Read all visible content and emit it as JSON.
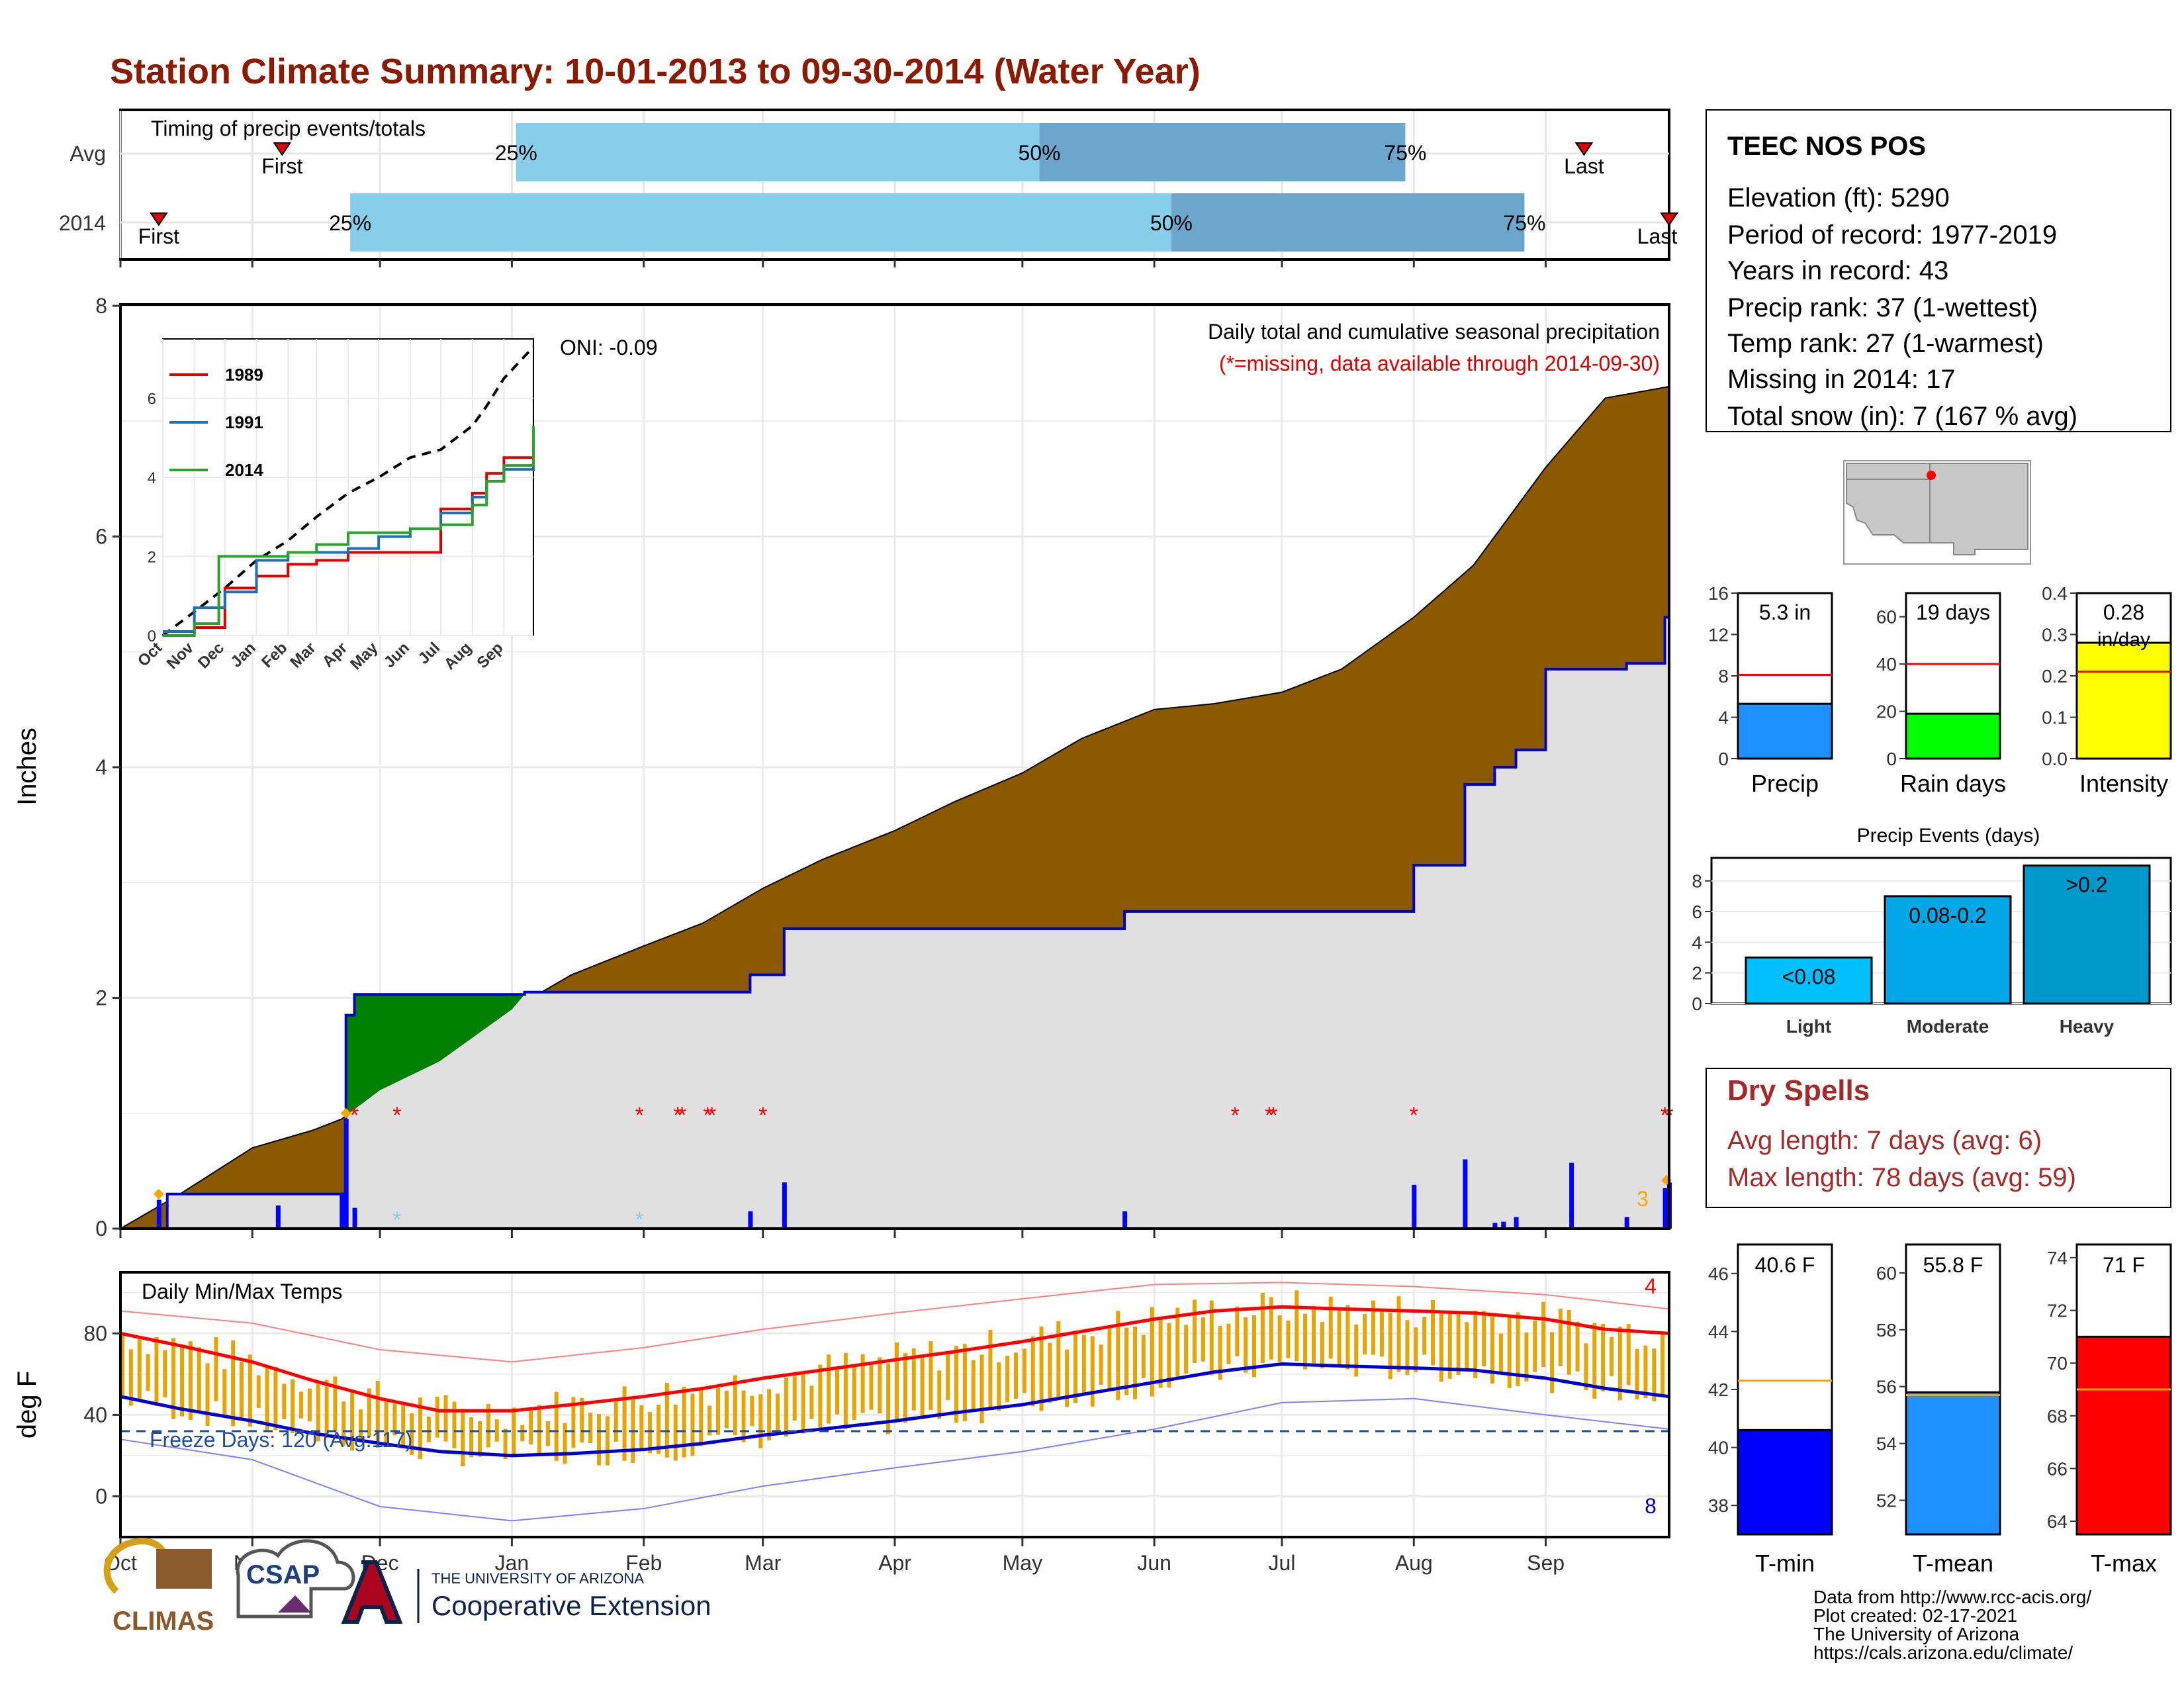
{
  "title": "Station Climate Summary: 10-01-2013 to 09-30-2014 (Water Year)",
  "timing": {
    "title": "Timing of precip events/totals",
    "rows": [
      {
        "label": "Avg",
        "first": "First",
        "last": "Last",
        "p25": "25%",
        "p50": "50%",
        "p75": "75%",
        "first_date": "2013-11-08",
        "p25_date": "2014-01-02",
        "p50_date": "2014-05-05",
        "p75_date": "2014-07-30",
        "last_date": "2014-09-10"
      },
      {
        "label": "2014",
        "first": "First",
        "last": "Last",
        "p25": "25%",
        "p50": "50%",
        "p75": "75%",
        "first_date": "2013-10-10",
        "p25_date": "2013-11-24",
        "p50_date": "2014-06-05",
        "p75_date": "2014-08-27",
        "last_date": "2014-09-30"
      }
    ]
  },
  "precip": {
    "ylabel": "Inches",
    "yticks": [
      "0",
      "2",
      "4",
      "6",
      "8"
    ],
    "note1": "Daily total and cumulative seasonal precipitation",
    "note2": "(*=missing, data available through 2014-09-30)",
    "oni": "ONI: -0.09",
    "count_label": "3",
    "months": [
      "Oct",
      "Nov",
      "Dec",
      "Jan",
      "Feb",
      "Mar",
      "Apr",
      "May",
      "Jun",
      "Jul",
      "Aug",
      "Sep"
    ],
    "colors": {
      "above_avg": "#8b5a00",
      "below_avg": "#008000",
      "observed": "#0000cc",
      "background_fill": "#e0e0e0"
    }
  },
  "inset": {
    "yticks": [
      "0",
      "2",
      "4",
      "6"
    ],
    "months": [
      "Oct",
      "Nov",
      "Dec",
      "Jan",
      "Feb",
      "Mar",
      "Apr",
      "May",
      "Jun",
      "Jul",
      "Aug",
      "Sep"
    ],
    "legend": [
      {
        "name": "1989",
        "color": "#e00000"
      },
      {
        "name": "1991",
        "color": "#1f6fb4"
      },
      {
        "name": "2014",
        "color": "#2ca02c"
      }
    ]
  },
  "temp": {
    "ylabel": "deg F",
    "title": "Daily Min/Max Temps",
    "yticks": [
      "0",
      "40",
      "80"
    ],
    "freeze": "Freeze Days: 120 (Avg:117)",
    "count_top": "4",
    "count_bottom": "8",
    "months": [
      "Oct",
      "Nov",
      "Dec",
      "Jan",
      "Feb",
      "Mar",
      "Apr",
      "May",
      "Jun",
      "Jul",
      "Aug",
      "Sep"
    ]
  },
  "station": {
    "name": "TEEC NOS POS",
    "lines": [
      "Elevation (ft): 5290",
      "Period of record: 1977-2019",
      "Years in record: 43",
      "Precip rank: 37 (1-wettest)",
      "Temp rank: 27 (1-warmest)",
      "Missing in 2014: 17",
      "Total snow (in): 7 (167 % avg)"
    ]
  },
  "mini_bars": [
    {
      "label": "Precip",
      "value_text": "5.3 in",
      "yticks": [
        "0",
        "4",
        "8",
        "12",
        "16"
      ],
      "color": "#1e90ff"
    },
    {
      "label": "Rain days",
      "value_text": "19 days",
      "yticks": [
        "0",
        "20",
        "40",
        "60"
      ],
      "color": "#00ff00"
    },
    {
      "label": "Intensity",
      "value_text": "0.28",
      "unit_text": "in/day",
      "yticks": [
        "0.0",
        "0.1",
        "0.2",
        "0.3",
        "0.4"
      ],
      "color": "#ffff00"
    }
  ],
  "events": {
    "title": "Precip Events (days)",
    "yticks": [
      "0",
      "2",
      "4",
      "6",
      "8"
    ],
    "categories": [
      "Light",
      "Moderate",
      "Heavy"
    ],
    "labels": [
      "<0.08",
      "0.08-0.2",
      ">0.2"
    ]
  },
  "dry": {
    "title": "Dry Spells",
    "avg": "Avg length: 7 days (avg: 6)",
    "max": "Max length: 78 days (avg: 59)"
  },
  "temp_bars": [
    {
      "label": "T-min",
      "value_text": "40.6 F",
      "yticks": [
        "38",
        "40",
        "42",
        "44",
        "46"
      ],
      "color": "#0000ff"
    },
    {
      "label": "T-mean",
      "value_text": "55.8 F",
      "yticks": [
        "52",
        "54",
        "56",
        "58",
        "60"
      ],
      "color": "#1e90ff"
    },
    {
      "label": "T-max",
      "value_text": "71 F",
      "yticks": [
        "64",
        "66",
        "68",
        "70",
        "72",
        "74"
      ],
      "color": "#ff0000"
    }
  ],
  "footer": {
    "lines": [
      "Data from http://www.rcc-acis.org/",
      "Plot created: 02-17-2021",
      "The University of Arizona",
      "https://cals.arizona.edu/climate/"
    ],
    "climas": "CLIMAS",
    "csap": "CSAP",
    "ua_small": "THE UNIVERSITY OF ARIZONA",
    "ua_big": "Cooperative Extension"
  },
  "chart_data": [
    {
      "type": "bar",
      "title": "Timing of precip events/totals",
      "categories": [
        "Avg",
        "2014"
      ],
      "series": [
        {
          "name": "Avg",
          "values": {
            "first": "2013-11-08",
            "p25": "2014-01-02",
            "p50": "2014-05-05",
            "p75": "2014-07-30",
            "last": "2014-09-10"
          }
        },
        {
          "name": "2014",
          "values": {
            "first": "2013-10-10",
            "p25": "2013-11-24",
            "p50": "2014-06-05",
            "p75": "2014-08-27",
            "last": "2014-09-30"
          }
        }
      ]
    },
    {
      "type": "area",
      "title": "Daily total and cumulative seasonal precipitation",
      "ylabel": "Inches",
      "ylim": [
        0,
        8
      ],
      "xlim": [
        "2013-10-01",
        "2014-09-30"
      ],
      "series": [
        {
          "name": "avg_cumulative",
          "x": [
            "2013-10-01",
            "2013-10-15",
            "2013-11-01",
            "2013-11-15",
            "2013-11-22",
            "2013-12-01",
            "2013-12-15",
            "2014-01-01",
            "2014-01-15",
            "2014-02-01",
            "2014-02-15",
            "2014-03-01",
            "2014-03-15",
            "2014-04-01",
            "2014-04-15",
            "2014-05-01",
            "2014-05-15",
            "2014-06-01",
            "2014-06-15",
            "2014-07-01",
            "2014-07-15",
            "2014-08-01",
            "2014-08-15",
            "2014-09-01",
            "2014-09-15",
            "2014-09-30"
          ],
          "values": [
            0.0,
            0.3,
            0.7,
            0.85,
            0.95,
            1.2,
            1.45,
            1.9,
            2.2,
            2.45,
            2.65,
            2.95,
            3.2,
            3.45,
            3.7,
            3.95,
            4.25,
            4.5,
            4.55,
            4.65,
            4.85,
            5.3,
            5.75,
            6.6,
            7.2,
            7.3
          ]
        },
        {
          "name": "2014_cumulative",
          "x": [
            "2013-10-01",
            "2013-10-10",
            "2013-10-12",
            "2013-11-22",
            "2013-11-23",
            "2013-11-25",
            "2014-01-04",
            "2014-02-26",
            "2014-03-06",
            "2014-05-25",
            "2014-08-01",
            "2014-08-13",
            "2014-08-20",
            "2014-08-25",
            "2014-09-01",
            "2014-09-20",
            "2014-09-29",
            "2014-09-30"
          ],
          "values": [
            0.0,
            0.0,
            0.3,
            0.3,
            1.85,
            2.03,
            2.05,
            2.2,
            2.6,
            2.75,
            3.15,
            3.85,
            4.0,
            4.15,
            4.85,
            4.9,
            5.3,
            5.3
          ]
        },
        {
          "name": "2014_daily",
          "x": [
            "2013-10-10",
            "2013-11-07",
            "2013-11-22",
            "2013-11-23",
            "2013-11-25",
            "2014-02-26",
            "2014-03-06",
            "2014-05-25",
            "2014-08-01",
            "2014-08-13",
            "2014-08-20",
            "2014-08-22",
            "2014-08-25",
            "2014-09-07",
            "2014-09-20",
            "2014-09-29",
            "2014-09-30"
          ],
          "values": [
            0.25,
            0.2,
            0.3,
            0.95,
            0.18,
            0.15,
            0.4,
            0.15,
            0.38,
            0.6,
            0.05,
            0.06,
            0.1,
            0.57,
            0.1,
            0.35,
            0.4
          ]
        }
      ],
      "missing_dates": [
        "2013-11-25",
        "2013-12-05",
        "2014-01-31",
        "2014-02-09",
        "2014-02-10",
        "2014-02-16",
        "2014-02-17",
        "2014-03-01",
        "2014-06-20",
        "2014-06-28",
        "2014-06-29",
        "2014-08-01",
        "2014-09-29",
        "2014-09-30"
      ],
      "annotation": "ONI: -0.09"
    },
    {
      "type": "line",
      "title": "",
      "xlim": [
        "2013-10-01",
        "2014-09-30"
      ],
      "ylim": [
        0,
        7.5
      ],
      "series": [
        {
          "name": "average",
          "x": [
            "2013-10-01",
            "2013-11-01",
            "2013-12-01",
            "2014-01-01",
            "2014-02-01",
            "2014-03-01",
            "2014-04-01",
            "2014-05-01",
            "2014-06-01",
            "2014-07-01",
            "2014-08-01",
            "2014-08-15",
            "2014-09-01",
            "2014-09-30"
          ],
          "values": [
            0.0,
            0.6,
            1.2,
            1.9,
            2.4,
            3.0,
            3.6,
            4.0,
            4.5,
            4.7,
            5.3,
            5.8,
            6.5,
            7.3
          ]
        },
        {
          "name": "1989",
          "x": [
            "2013-10-01",
            "2013-11-01",
            "2013-12-01",
            "2014-01-01",
            "2014-02-01",
            "2014-03-01",
            "2014-04-01",
            "2014-05-01",
            "2014-06-01",
            "2014-07-01",
            "2014-08-01",
            "2014-08-15",
            "2014-09-01",
            "2014-09-30"
          ],
          "values": [
            0.1,
            0.2,
            1.2,
            1.5,
            1.8,
            1.9,
            2.1,
            2.1,
            2.1,
            3.2,
            3.6,
            4.1,
            4.5,
            4.9
          ]
        },
        {
          "name": "1991",
          "x": [
            "2013-10-01",
            "2013-11-01",
            "2013-12-01",
            "2014-01-01",
            "2014-02-01",
            "2014-03-01",
            "2014-04-01",
            "2014-05-01",
            "2014-06-01",
            "2014-07-01",
            "2014-08-01",
            "2014-08-15",
            "2014-09-01",
            "2014-09-30"
          ],
          "values": [
            0.1,
            0.7,
            1.1,
            1.9,
            2.1,
            2.1,
            2.2,
            2.5,
            2.7,
            3.1,
            3.5,
            3.9,
            4.2,
            4.4
          ]
        },
        {
          "name": "2014",
          "x": [
            "2013-10-01",
            "2013-11-01",
            "2013-11-25",
            "2014-01-01",
            "2014-02-01",
            "2014-03-01",
            "2014-04-01",
            "2014-05-01",
            "2014-06-01",
            "2014-07-01",
            "2014-08-01",
            "2014-08-15",
            "2014-09-01",
            "2014-09-30"
          ],
          "values": [
            0.0,
            0.3,
            2.0,
            2.0,
            2.1,
            2.3,
            2.6,
            2.6,
            2.7,
            2.8,
            3.3,
            3.9,
            4.3,
            5.3
          ]
        }
      ]
    },
    {
      "type": "line",
      "title": "Daily Min/Max Temps",
      "ylabel": "deg F",
      "ylim": [
        -20,
        110
      ],
      "xlim": [
        "2013-10-01",
        "2014-09-30"
      ],
      "series": [
        {
          "name": "avg_max",
          "x": [
            "2013-10-01",
            "2013-10-15",
            "2013-11-01",
            "2013-11-15",
            "2013-12-01",
            "2013-12-15",
            "2014-01-01",
            "2014-01-15",
            "2014-02-01",
            "2014-02-15",
            "2014-03-01",
            "2014-03-15",
            "2014-04-01",
            "2014-04-15",
            "2014-05-01",
            "2014-05-15",
            "2014-06-01",
            "2014-06-15",
            "2014-07-01",
            "2014-07-15",
            "2014-08-01",
            "2014-08-15",
            "2014-09-01",
            "2014-09-15",
            "2014-09-30"
          ],
          "values": [
            80,
            74,
            66,
            57,
            48,
            42,
            42,
            45,
            49,
            53,
            58,
            62,
            67,
            71,
            76,
            81,
            87,
            91,
            93,
            92,
            91,
            90,
            87,
            82,
            80
          ]
        },
        {
          "name": "avg_min",
          "x": [
            "2013-10-01",
            "2013-10-15",
            "2013-11-01",
            "2013-11-15",
            "2013-12-01",
            "2013-12-15",
            "2014-01-01",
            "2014-01-15",
            "2014-02-01",
            "2014-02-15",
            "2014-03-01",
            "2014-03-15",
            "2014-04-01",
            "2014-04-15",
            "2014-05-01",
            "2014-05-15",
            "2014-06-01",
            "2014-06-15",
            "2014-07-01",
            "2014-07-15",
            "2014-08-01",
            "2014-08-15",
            "2014-09-01",
            "2014-09-15",
            "2014-09-30"
          ],
          "values": [
            49,
            43,
            37,
            31,
            26,
            22,
            20,
            21,
            23,
            26,
            30,
            33,
            37,
            41,
            45,
            50,
            56,
            61,
            65,
            64,
            63,
            62,
            58,
            53,
            49
          ]
        },
        {
          "name": "record_max",
          "x": [
            "2013-10-01",
            "2013-11-01",
            "2013-12-01",
            "2014-01-01",
            "2014-02-01",
            "2014-03-01",
            "2014-04-01",
            "2014-05-01",
            "2014-06-01",
            "2014-07-01",
            "2014-08-01",
            "2014-09-01",
            "2014-09-30"
          ],
          "values": [
            91,
            85,
            72,
            66,
            73,
            82,
            90,
            97,
            104,
            105,
            103,
            99,
            92
          ]
        },
        {
          "name": "record_min",
          "x": [
            "2013-10-01",
            "2013-11-01",
            "2013-12-01",
            "2014-01-01",
            "2014-02-01",
            "2014-03-01",
            "2014-04-01",
            "2014-05-01",
            "2014-06-01",
            "2014-07-01",
            "2014-08-01",
            "2014-09-01",
            "2014-09-30"
          ],
          "values": [
            28,
            18,
            -5,
            -12,
            -6,
            5,
            14,
            22,
            33,
            46,
            48,
            40,
            33
          ]
        }
      ],
      "freeze_line": 32,
      "annotation": "Freeze Days: 120 (Avg:117)"
    },
    {
      "type": "bar",
      "title": "",
      "categories": [
        "Precip",
        "Rain days",
        "Intensity"
      ],
      "series": [
        {
          "name": "2014",
          "values": [
            5.3,
            19,
            0.28
          ]
        },
        {
          "name": "average",
          "values": [
            8.1,
            40,
            0.21
          ]
        }
      ]
    },
    {
      "type": "bar",
      "title": "Precip Events (days)",
      "categories": [
        "Light",
        "Moderate",
        "Heavy"
      ],
      "values": [
        3,
        7,
        9
      ],
      "ylim": [
        0,
        9.5
      ]
    },
    {
      "type": "bar",
      "title": "",
      "categories": [
        "T-min",
        "T-mean",
        "T-max"
      ],
      "series": [
        {
          "name": "2014",
          "values": [
            40.6,
            55.8,
            71
          ]
        },
        {
          "name": "average",
          "values": [
            42.3,
            55.7,
            69
          ]
        }
      ]
    }
  ]
}
